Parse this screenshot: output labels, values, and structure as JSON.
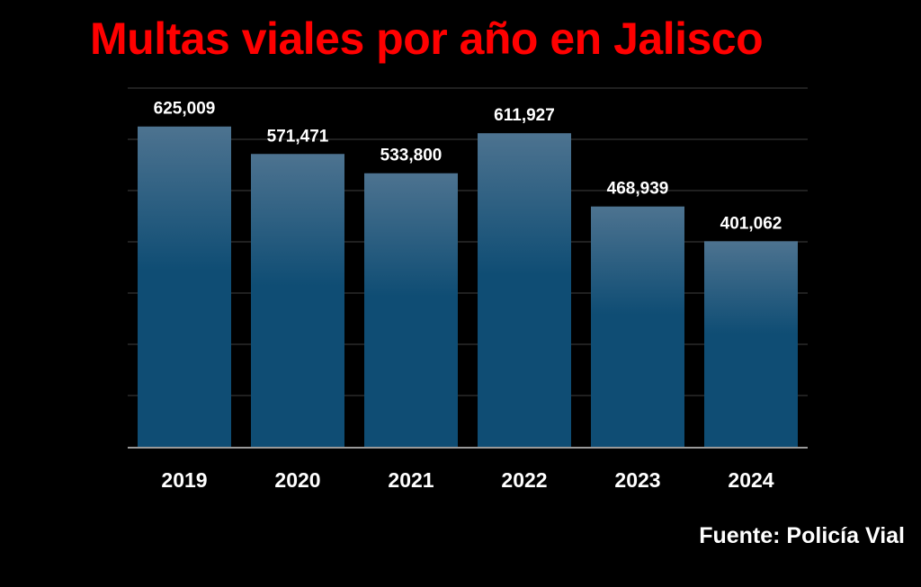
{
  "chart_data": {
    "type": "bar",
    "title": "Multas viales por año en Jalisco",
    "xlabel": "",
    "ylabel": "",
    "categories": [
      "2019",
      "2020",
      "2021",
      "2022",
      "2023",
      "2024"
    ],
    "values": [
      625009,
      571471,
      533800,
      611927,
      468939,
      401062
    ],
    "value_labels": [
      "625,009",
      "571,471",
      "533,800",
      "611,927",
      "468,939",
      "401,062"
    ],
    "ylim": [
      0,
      700000
    ],
    "grid": true,
    "legend": "none"
  },
  "source": "Fuente: Policía Vial",
  "colors": {
    "background": "#000000",
    "title": "#ff0000",
    "bar_top": "#4d7390",
    "bar_bottom": "#0f4d74",
    "gridline": "#2b2b2b",
    "axis": "#9a9a9a",
    "text": "#ffffff"
  }
}
